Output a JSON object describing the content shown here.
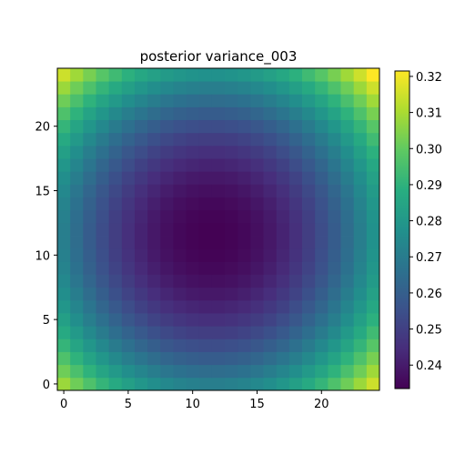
{
  "chart_data": {
    "type": "heatmap",
    "title": "posterior variance_003",
    "xlabel": "",
    "ylabel": "",
    "grid_size": [
      25,
      25
    ],
    "xlim": [
      -0.5,
      24.5
    ],
    "ylim": [
      -0.5,
      24.5
    ],
    "x_ticks": [
      0,
      5,
      10,
      15,
      20
    ],
    "y_ticks": [
      0,
      5,
      10,
      15,
      20
    ],
    "x_tick_labels": [
      "0",
      "5",
      "10",
      "15",
      "20"
    ],
    "y_tick_labels": [
      "0",
      "5",
      "10",
      "15",
      "20"
    ],
    "origin": "lower",
    "field": {
      "description_of_values": "variance at cell (col=i,row=j)",
      "center": [
        11.5,
        11.5
      ],
      "min_value": 0.2335,
      "max_value": 0.3215,
      "corner_value": 0.3215
    },
    "colormap": "viridis",
    "grid": false,
    "colorbar": {
      "range": [
        0.2335,
        0.3215
      ],
      "ticks": [
        0.24,
        0.25,
        0.26,
        0.27,
        0.28,
        0.29,
        0.3,
        0.31,
        0.32
      ],
      "tick_labels": [
        "0.24",
        "0.25",
        "0.26",
        "0.27",
        "0.28",
        "0.29",
        "0.30",
        "0.31",
        "0.32"
      ]
    }
  }
}
